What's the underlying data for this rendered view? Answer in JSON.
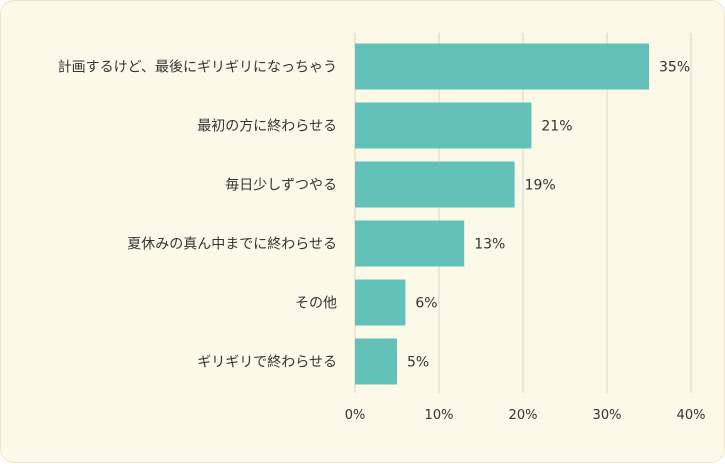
{
  "chart_data": {
    "type": "bar",
    "orientation": "horizontal",
    "categories": [
      "計画するけど、最後にギリギリになっちゃう",
      "最初の方に終わらせる",
      "毎日少しずつやる",
      "夏休みの真ん中までに終わらせる",
      "その他",
      "ギリギリで終わらせる"
    ],
    "values": [
      35,
      21,
      19,
      13,
      6,
      5
    ],
    "value_labels": [
      "35%",
      "21%",
      "19%",
      "13%",
      "6%",
      "5%"
    ],
    "xlim": [
      0,
      40
    ],
    "x_ticks": [
      0,
      10,
      20,
      30,
      40
    ],
    "x_tick_labels": [
      "0%",
      "10%",
      "20%",
      "30%",
      "40%"
    ],
    "grid": true,
    "bar_color": "#62c1b9",
    "background_color": "#fcf9e9"
  }
}
